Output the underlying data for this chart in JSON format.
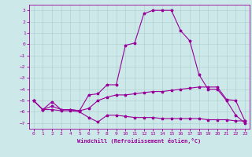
{
  "xlabel": "Windchill (Refroidissement éolien,°C)",
  "background_color": "#cce8e8",
  "grid_color": "#aacccc",
  "line_color": "#990099",
  "x_ticks": [
    0,
    1,
    2,
    3,
    4,
    5,
    6,
    7,
    8,
    9,
    10,
    11,
    12,
    13,
    14,
    15,
    16,
    17,
    18,
    19,
    20,
    21,
    22,
    23
  ],
  "y_ticks": [
    3,
    2,
    1,
    0,
    -1,
    -2,
    -3,
    -4,
    -5,
    -6,
    -7
  ],
  "ylim": [
    -7.5,
    3.5
  ],
  "xlim": [
    -0.5,
    23.5
  ],
  "lines": [
    {
      "x": [
        0,
        1,
        2,
        3,
        4,
        5,
        6,
        7,
        8,
        9,
        10,
        11,
        12,
        13,
        14,
        15,
        16,
        17,
        18,
        19,
        20,
        21,
        22,
        23
      ],
      "y": [
        -5.0,
        -5.8,
        -5.1,
        -5.8,
        -5.8,
        -5.9,
        -5.7,
        -5.0,
        -4.7,
        -4.5,
        -4.5,
        -4.4,
        -4.3,
        -4.2,
        -4.2,
        -4.1,
        -4.0,
        -3.9,
        -3.8,
        -3.8,
        -3.8,
        -4.9,
        -5.0,
        -6.8
      ]
    },
    {
      "x": [
        0,
        1,
        2,
        3,
        4,
        5,
        6,
        7,
        8,
        9,
        10,
        11,
        12,
        13,
        14,
        15,
        16,
        17,
        18,
        19,
        20,
        21,
        22,
        23
      ],
      "y": [
        -5.0,
        -5.8,
        -5.8,
        -5.9,
        -5.9,
        -6.0,
        -6.5,
        -6.9,
        -6.3,
        -6.3,
        -6.4,
        -6.5,
        -6.5,
        -6.5,
        -6.6,
        -6.6,
        -6.6,
        -6.6,
        -6.6,
        -6.7,
        -6.7,
        -6.7,
        -6.8,
        -6.8
      ]
    },
    {
      "x": [
        0,
        1,
        2,
        3,
        4,
        5,
        6,
        7,
        8,
        9,
        10,
        11,
        12,
        13,
        14,
        15,
        16,
        17,
        18,
        19,
        20,
        21,
        22,
        23
      ],
      "y": [
        -5.0,
        -5.8,
        -5.5,
        -5.8,
        -5.8,
        -5.9,
        -4.5,
        -4.4,
        -3.6,
        -3.6,
        -0.1,
        0.1,
        2.7,
        3.0,
        3.0,
        3.0,
        1.2,
        0.3,
        -2.7,
        -4.0,
        -4.0,
        -5.0,
        -6.3,
        -7.0
      ]
    }
  ]
}
